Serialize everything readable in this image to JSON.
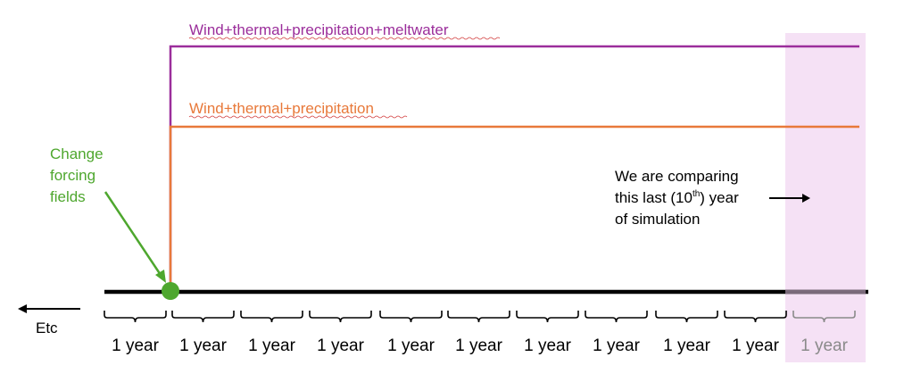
{
  "labels": {
    "series_top": "Wind+thermal+precipitation+meltwater",
    "series_mid": "Wind+thermal+precipitation",
    "change_line1": "Change",
    "change_line2": "forcing",
    "change_line3": "fields",
    "compare_line1": "We are comparing",
    "compare_line2_pre": "this last (10",
    "compare_line2_sup": "th",
    "compare_line2_post": ") year",
    "compare_line3": "of simulation",
    "etc": "Etc"
  },
  "years": [
    "1 year",
    "1 year",
    "1 year",
    "1 year",
    "1 year",
    "1 year",
    "1 year",
    "1 year",
    "1 year",
    "1 year",
    "1 year"
  ],
  "colors": {
    "purple": "#9b2e9b",
    "orange": "#e8793a",
    "green": "#4ea72e",
    "black": "#000000",
    "highlight": "#f5e1f5",
    "faded_text": "#8a8a8a"
  }
}
